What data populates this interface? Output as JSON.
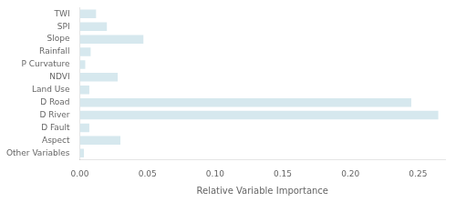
{
  "chart_data": {
    "type": "bar",
    "orientation": "horizontal",
    "categories": [
      "TWI",
      "SPI",
      "Slope",
      "Rainfall",
      "P Curvature",
      "NDVI",
      "Land Use",
      "D Road",
      "D River",
      "D Fault",
      "Aspect",
      "Other Variables"
    ],
    "values": [
      0.012,
      0.02,
      0.047,
      0.008,
      0.004,
      0.028,
      0.007,
      0.245,
      0.265,
      0.007,
      0.03,
      0.003
    ],
    "color": "#d6e8ee",
    "xlabel": "Relative Variable Importance",
    "xlim": [
      0,
      0.27
    ],
    "xticks": [
      {
        "value": 0,
        "label": "0.00"
      },
      0.05,
      {
        "value": 0.1,
        "label": "0.10"
      },
      0.15,
      {
        "value": 0.2,
        "label": "0.20"
      },
      0.25
    ],
    "grid": false,
    "legend": false
  }
}
